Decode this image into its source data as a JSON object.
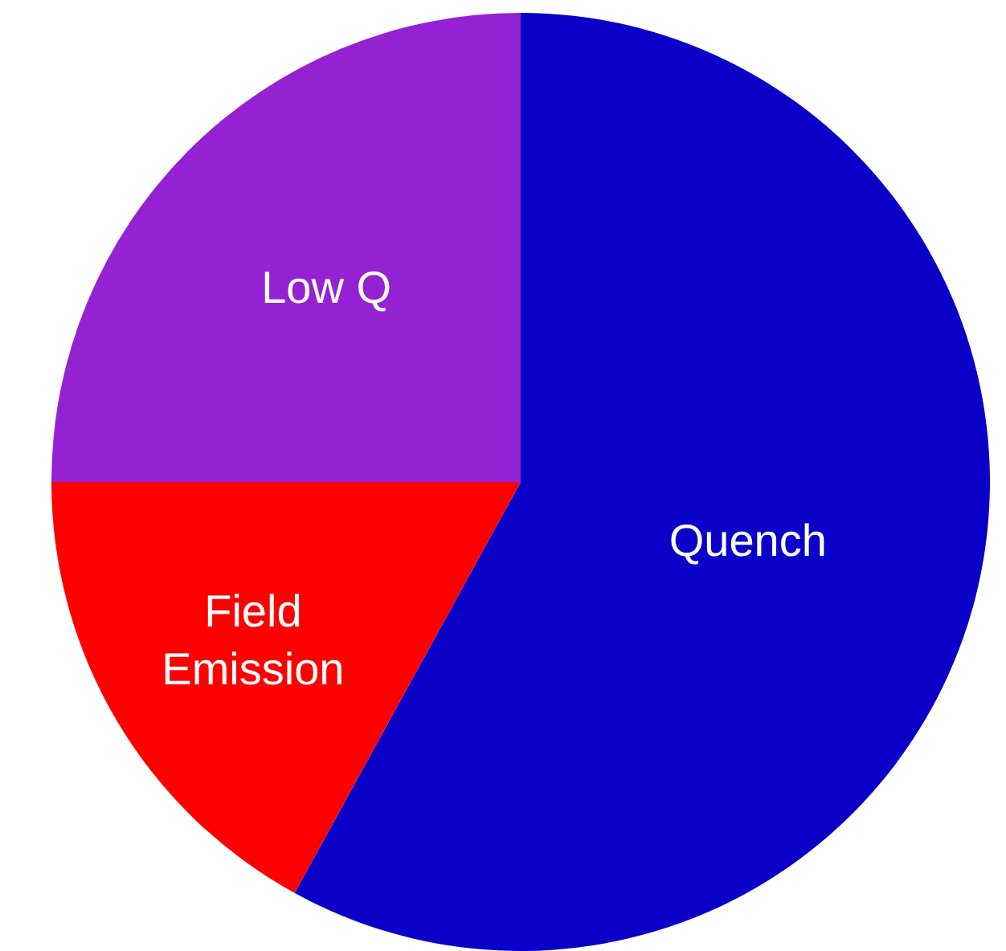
{
  "chart_data": {
    "type": "pie",
    "categories": [
      "Quench",
      "Field Emission",
      "Low Q"
    ],
    "values": [
      58,
      17,
      25
    ],
    "colors": [
      "#0a00c8",
      "#ff0000",
      "#9422d2"
    ],
    "legend": false
  }
}
